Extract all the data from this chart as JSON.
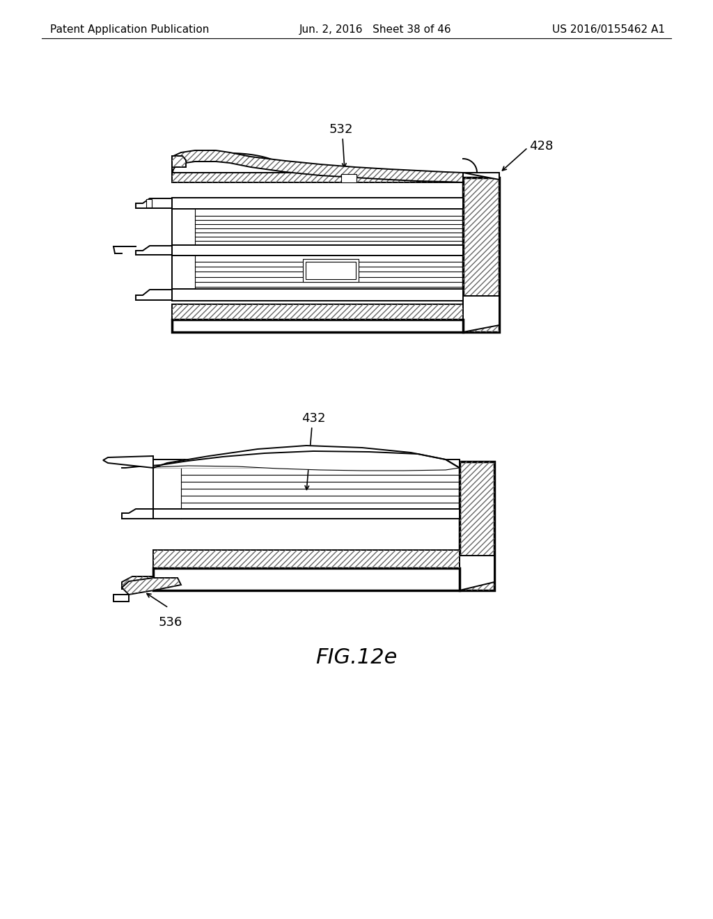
{
  "bg_color": "#ffffff",
  "header_left": "Patent Application Publication",
  "header_mid": "Jun. 2, 2016   Sheet 38 of 46",
  "header_right": "US 2016/0155462 A1",
  "fig_label": "FIG.12e",
  "label_532": "532",
  "label_428": "428",
  "label_432": "432",
  "label_536": "536",
  "fig_label_fontsize": 22,
  "header_fontsize": 11,
  "annotation_fontsize": 13
}
